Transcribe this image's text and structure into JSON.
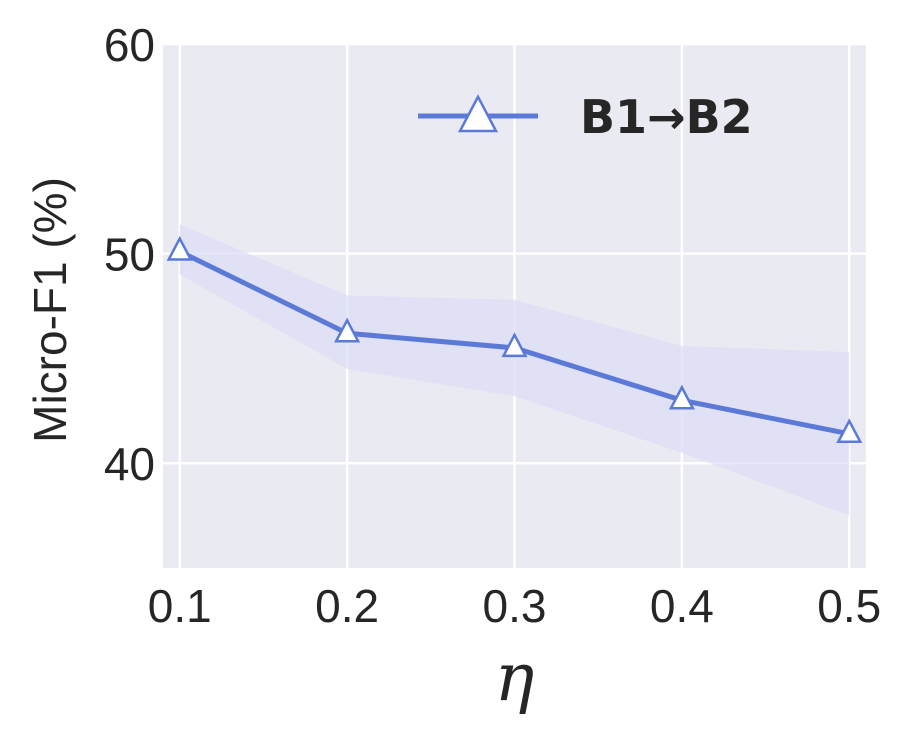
{
  "chart_data": {
    "type": "line",
    "xlabel": "η",
    "ylabel": "Micro-F1 (%)",
    "x": [
      0.1,
      0.2,
      0.3,
      0.4,
      0.5
    ],
    "x_ticks": [
      "0.1",
      "0.2",
      "0.3",
      "0.4",
      "0.5"
    ],
    "y_ticks": [
      "40",
      "50",
      "60"
    ],
    "xlim": [
      0.09,
      0.51
    ],
    "ylim": [
      35,
      60
    ],
    "grid": true,
    "legend_position": "top-right",
    "series": [
      {
        "name": "B1→B2",
        "values": [
          50.1,
          46.2,
          45.5,
          43.0,
          41.4
        ],
        "band_lower": [
          49.0,
          44.5,
          43.2,
          40.5,
          37.5
        ],
        "band_upper": [
          51.4,
          48.0,
          47.8,
          45.6,
          45.3
        ],
        "marker": "open-triangle",
        "color": "#5b79d6",
        "band_color": "#dcddf5"
      }
    ],
    "background_color": "#eaeaf2",
    "grid_color": "#ffffff"
  }
}
